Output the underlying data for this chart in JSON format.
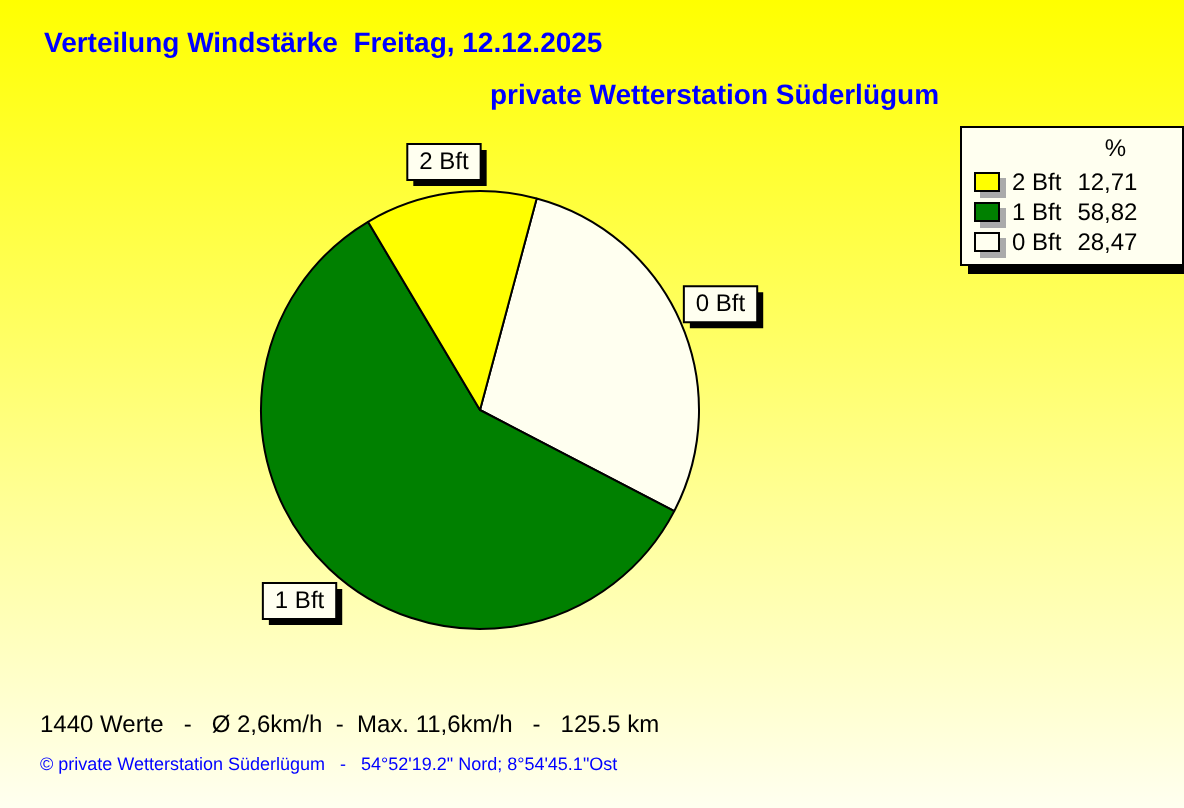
{
  "chart_data": {
    "type": "pie",
    "title": "Verteilung Windstärke  Freitag, 12.12.2025",
    "subtitle": "private Wetterstation Süderlügum",
    "legend_title": "%",
    "legend": "top right",
    "categories": [
      "2 Bft",
      "1 Bft",
      "0 Bft"
    ],
    "values": [
      12.71,
      58.82,
      28.47
    ],
    "value_labels": [
      "12,71",
      "58,82",
      "28,47"
    ],
    "colors": [
      "#ffff00",
      "#008000",
      "#fffff0"
    ],
    "annotations": [
      "1440 Werte   -   Ø 2,6km/h  -  Max. 11,6km/h   -   125.5 km",
      "© private Wetterstation Süderlügum   -   54°52'19.2\" Nord; 8°54'45.1\"Ost"
    ]
  }
}
